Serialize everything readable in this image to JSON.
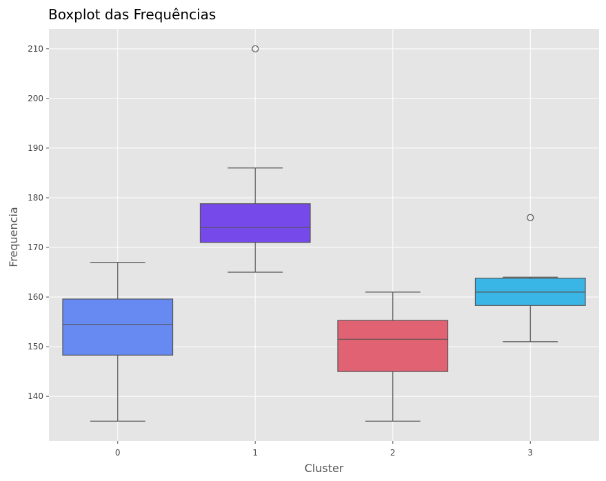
{
  "chart_data": {
    "type": "boxplot",
    "title": "Boxplot das Frequências",
    "xlabel": "Cluster",
    "ylabel": "Frequencia",
    "categories": [
      "0",
      "1",
      "2",
      "3"
    ],
    "ylim": [
      131,
      214
    ],
    "yticks": [
      140,
      150,
      160,
      170,
      180,
      190,
      200,
      210
    ],
    "grid": true,
    "background": "#e5e5e5",
    "grid_color": "#ffffff",
    "line_color": "#555555",
    "boxes": [
      {
        "category": "0",
        "color": "#6689f2",
        "whisker_low": 135,
        "q1": 148.3,
        "median": 154.5,
        "q3": 159.6,
        "whisker_high": 167,
        "outliers": []
      },
      {
        "category": "1",
        "color": "#764aea",
        "whisker_low": 165,
        "q1": 171,
        "median": 174,
        "q3": 178.8,
        "whisker_high": 186,
        "outliers": [
          210
        ]
      },
      {
        "category": "2",
        "color": "#e16373",
        "whisker_low": 135,
        "q1": 145,
        "median": 151.5,
        "q3": 155.3,
        "whisker_high": 161,
        "outliers": []
      },
      {
        "category": "3",
        "color": "#39b6e6",
        "whisker_low": 151,
        "q1": 158.3,
        "median": 161,
        "q3": 163.8,
        "whisker_high": 164,
        "outliers": [
          176
        ]
      }
    ]
  }
}
